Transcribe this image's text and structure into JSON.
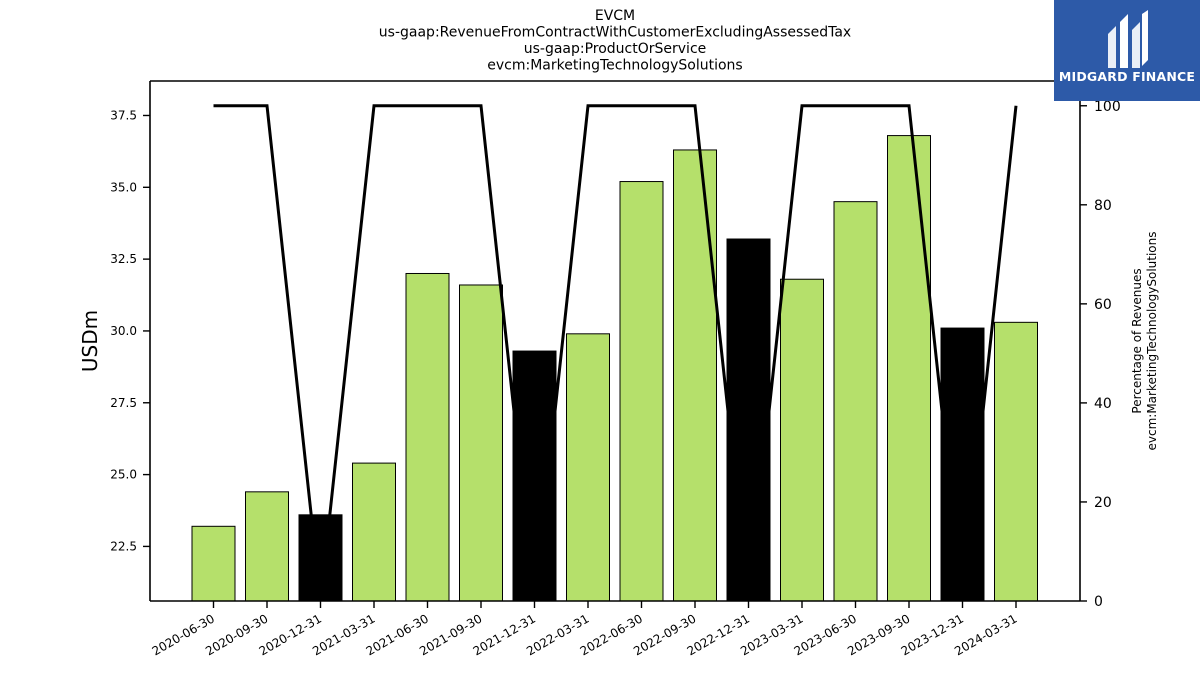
{
  "brand": {
    "name": "MIDGARD FINANCE",
    "logo_icon": "midgard-logo-icon",
    "background": "#2d5aa8"
  },
  "chart_data": {
    "type": "bar",
    "title_lines": [
      "EVCM",
      "us-gaap:RevenueFromContractWithCustomerExcludingAssessedTax",
      "us-gaap:ProductOrService",
      "evcm:MarketingTechnologySolutions"
    ],
    "ylabel": "USDm",
    "ylabel_right": [
      "Percentage of Revenues",
      "evcm:MarketingTechnologySolutions"
    ],
    "categories": [
      "2020-06-30",
      "2020-09-30",
      "2020-12-31",
      "2021-03-31",
      "2021-06-30",
      "2021-09-30",
      "2021-12-31",
      "2022-03-31",
      "2022-06-30",
      "2022-09-30",
      "2022-12-31",
      "2023-03-31",
      "2023-06-30",
      "2023-09-30",
      "2023-12-31",
      "2024-03-31"
    ],
    "series": [
      {
        "type": "bar",
        "values": [
          23.2,
          24.4,
          23.6,
          25.4,
          32.0,
          31.6,
          29.3,
          29.9,
          35.2,
          36.3,
          33.2,
          31.8,
          34.5,
          36.8,
          30.1,
          30.3
        ],
        "highlight": [
          false,
          false,
          true,
          false,
          false,
          false,
          true,
          false,
          false,
          false,
          true,
          false,
          false,
          false,
          true,
          false
        ],
        "color": "#b5e06b",
        "highlight_color": "#000000"
      },
      {
        "type": "line",
        "axis": "right",
        "values": [
          100,
          100,
          0,
          100,
          100,
          100,
          0,
          100,
          100,
          100,
          0,
          100,
          100,
          100,
          0,
          100
        ],
        "color": "#000000"
      }
    ],
    "ylim": [
      20.6,
      38.7
    ],
    "yticks": [
      22.5,
      25.0,
      27.5,
      30.0,
      32.5,
      35.0,
      37.5
    ],
    "ytick_labels": [
      "22.5",
      "25.0",
      "27.5",
      "30.0",
      "32.5",
      "35.0",
      "37.5"
    ],
    "ylim_right": [
      0,
      105
    ],
    "yticks_right": [
      0,
      20,
      40,
      60,
      80,
      100
    ],
    "ytick_labels_right": [
      "0",
      "20",
      "40",
      "60",
      "80",
      "100"
    ],
    "grid": false,
    "legend": "none"
  }
}
